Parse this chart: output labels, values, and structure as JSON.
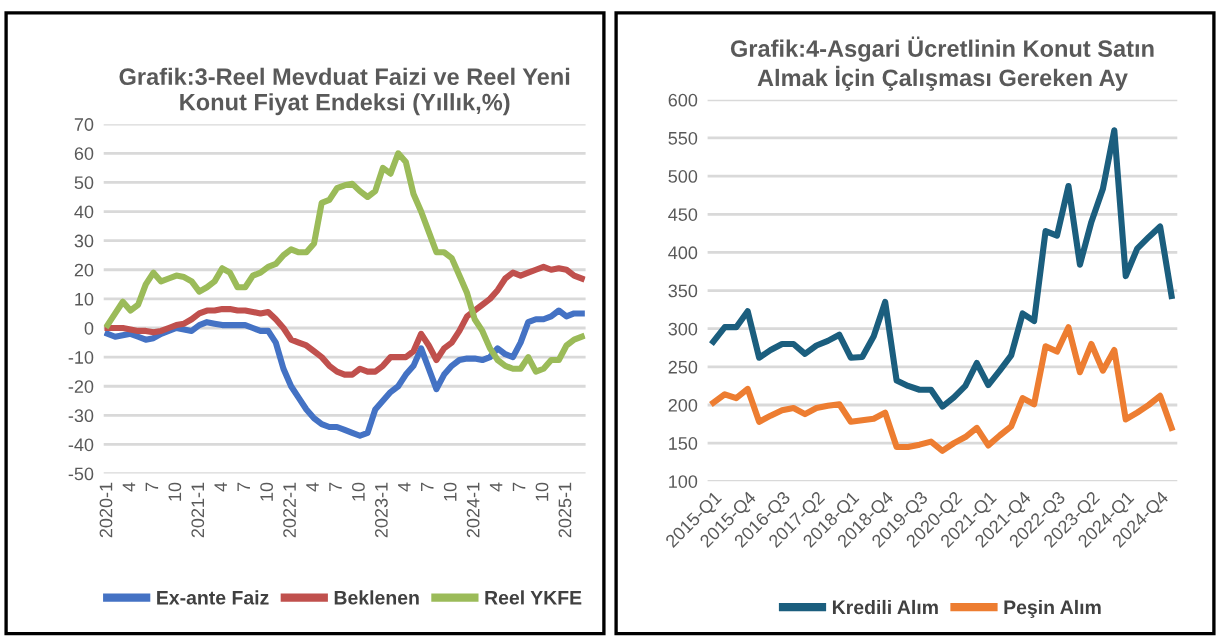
{
  "chart_data": [
    {
      "type": "line",
      "title": "Grafik:3-Reel Mevduat Faizi ve Reel Yeni Konut Fiyat Endeksi (Yıllık,%)",
      "categories": [
        "2020-1",
        null,
        null,
        "4",
        null,
        null,
        "7",
        null,
        null,
        "10",
        null,
        null,
        "2021-1",
        null,
        null,
        "4",
        null,
        null,
        "7",
        null,
        null,
        "10",
        null,
        null,
        "2022-1",
        null,
        null,
        "4",
        null,
        null,
        "7",
        null,
        null,
        "10",
        null,
        null,
        "2023-1",
        null,
        null,
        "4",
        null,
        null,
        "7",
        null,
        null,
        "10",
        null,
        null,
        "2024-1",
        null,
        null,
        "4",
        null,
        null,
        "7",
        null,
        null,
        "10",
        null,
        null,
        "2025-1",
        null,
        null
      ],
      "series": [
        {
          "name": "Ex-ante Faiz",
          "color": "#4472c4",
          "values": [
            -2,
            -3,
            -2.5,
            -2,
            -3,
            -4,
            -3.5,
            -2,
            -1,
            0,
            -0.5,
            -1,
            1,
            2,
            1.5,
            1,
            1,
            1,
            1,
            0,
            -1,
            -1,
            -5,
            -14,
            -20,
            -24,
            -28,
            -31,
            -33,
            -34,
            -34,
            -35,
            -36,
            -37,
            -36,
            -28,
            -25,
            -22,
            -20,
            -16,
            -13,
            -7,
            -14,
            -21,
            -16,
            -13,
            -11,
            -10.5,
            -10.5,
            -11,
            -10,
            -7,
            -9,
            -10,
            -5,
            2,
            3,
            3,
            4,
            6,
            4,
            5,
            5
          ]
        },
        {
          "name": "Beklenen",
          "color": "#c0504d",
          "values": [
            0,
            0,
            0,
            -0.5,
            -1,
            -1,
            -1.5,
            -1,
            0,
            1,
            1.5,
            3,
            5,
            6,
            6,
            6.5,
            6.5,
            6,
            6,
            5.5,
            5,
            5.5,
            3,
            0,
            -4,
            -5,
            -6,
            -8,
            -10,
            -13,
            -15,
            -16,
            -16,
            -14,
            -15,
            -15,
            -13,
            -10,
            -10,
            -10,
            -8,
            -2,
            -6,
            -11,
            -7,
            -5,
            -1,
            4,
            6,
            8,
            10,
            13,
            17,
            19,
            18,
            19,
            20,
            21,
            20,
            20.5,
            20,
            18,
            17
          ]
        },
        {
          "name": "Reel YKFE",
          "color": "#9bbb59",
          "values": [
            1,
            5,
            9,
            6,
            8,
            15,
            19,
            16,
            17,
            18,
            17.5,
            16,
            12.5,
            14,
            16,
            20.5,
            19,
            14,
            14,
            18,
            19,
            21,
            22,
            25,
            27,
            26,
            26,
            29,
            43,
            44,
            48,
            49,
            49.5,
            47,
            45,
            47,
            55,
            53,
            60,
            57,
            46,
            40,
            33,
            26,
            26,
            24,
            18,
            12,
            3,
            -1,
            -7,
            -11,
            -13,
            -14,
            -14,
            -10,
            -15,
            -14,
            -11,
            -11,
            -6,
            -4,
            -3
          ]
        }
      ],
      "ylim": [
        -50,
        70
      ],
      "yticks": [
        -50,
        -40,
        -30,
        -20,
        -10,
        0,
        10,
        20,
        30,
        40,
        50,
        60,
        70
      ],
      "grid": "y",
      "legend": "bottom",
      "marker": "none",
      "line_style": "solid"
    },
    {
      "type": "line",
      "title": "Grafik:4-Asgari Ücretlinin Konut Satın Almak İçin Çalışması Gereken Ay",
      "categories": [
        "2015-Q1",
        null,
        null,
        "2015-Q4",
        null,
        null,
        "2016-Q3",
        null,
        null,
        "2017-Q2",
        null,
        null,
        "2018-Q1",
        null,
        null,
        "2018-Q4",
        null,
        null,
        "2019-Q3",
        null,
        null,
        "2020-Q2",
        null,
        null,
        "2021-Q1",
        null,
        null,
        "2021-Q4",
        null,
        null,
        "2022-Q3",
        null,
        null,
        "2023-Q2",
        null,
        null,
        "2024-Q1",
        null,
        null,
        "2024-Q4",
        null
      ],
      "series": [
        {
          "name": "Kredili Alım",
          "color": "#1b5e7e",
          "values": [
            283,
            302,
            302,
            323,
            262,
            272,
            280,
            280,
            267,
            278,
            284,
            292,
            262,
            263,
            290,
            335,
            232,
            225,
            220,
            220,
            198,
            210,
            225,
            255,
            226,
            245,
            265,
            320,
            310,
            428,
            422,
            487,
            384,
            440,
            483,
            560,
            369,
            405,
            420,
            434,
            343
          ]
        },
        {
          "name": "Peşin Alım",
          "color": "#ed7d31",
          "values": [
            203,
            214,
            209,
            221,
            178,
            186,
            193,
            196,
            188,
            196,
            199,
            201,
            178,
            180,
            182,
            190,
            145,
            145,
            148,
            152,
            140,
            150,
            158,
            170,
            147,
            160,
            172,
            209,
            201,
            277,
            270,
            302,
            243,
            280,
            245,
            272,
            181,
            190,
            200,
            212,
            170
          ]
        }
      ],
      "ylim": [
        100,
        600
      ],
      "yticks": [
        100,
        150,
        200,
        250,
        300,
        350,
        400,
        450,
        500,
        550,
        600
      ],
      "grid": "y",
      "legend": "bottom",
      "marker": "none",
      "line_style": "solid"
    }
  ]
}
